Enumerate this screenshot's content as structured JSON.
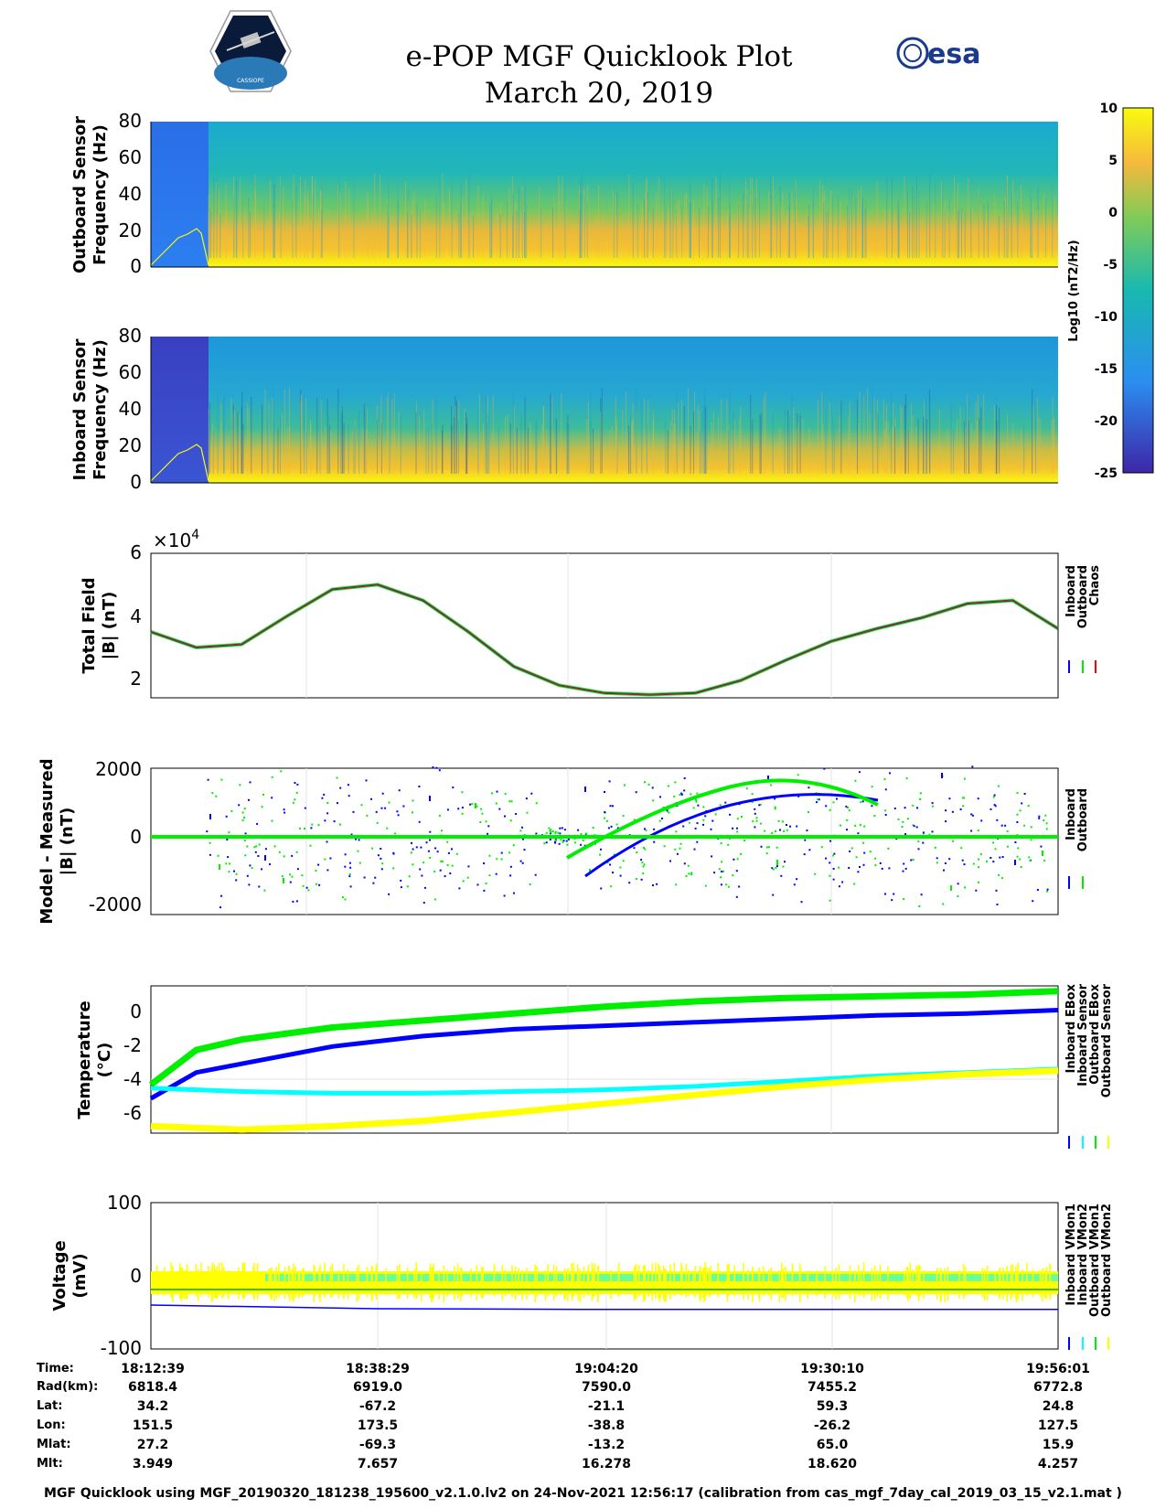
{
  "header": {
    "title_line1": "e-POP MGF Quicklook Plot",
    "title_line2": "March 20, 2019",
    "esa_label": "esa",
    "cassiope_label": "CASSIOPE"
  },
  "colors": {
    "inboard": "#0000ff",
    "outboard": "#00ee00",
    "chaos": "#ff0000",
    "inboard_sensor_temp": "#00ffff",
    "outboard_sensor_temp": "#ffff00",
    "brown_model": "#8b3a1a"
  },
  "chart_data": [
    {
      "type": "heatmap",
      "id": "outboard-spectrogram",
      "ylabel": "Outboard Sensor Frequency (Hz)",
      "ylabel_line1": "Outboard Sensor",
      "ylabel_line2": "Frequency (Hz)",
      "yticks": [
        "80",
        "60",
        "40",
        "20",
        "0"
      ],
      "ylim": [
        0,
        80
      ]
    },
    {
      "type": "heatmap",
      "id": "inboard-spectrogram",
      "ylabel": "Inboard Sensor Frequency (Hz)",
      "ylabel_line1": "Inboard Sensor",
      "ylabel_line2": "Frequency (Hz)",
      "yticks": [
        "80",
        "60",
        "40",
        "20",
        "0"
      ],
      "ylim": [
        0,
        80
      ]
    },
    {
      "type": "colorbar",
      "id": "psd-colorbar",
      "label": "Log10 (nT2/Hz)",
      "ticks": [
        "10",
        "5",
        "0",
        "-5",
        "-10",
        "-15",
        "-20",
        "-25"
      ],
      "range": [
        -25,
        10
      ]
    },
    {
      "type": "line",
      "id": "total-field",
      "ylabel_line1": "Total Field",
      "ylabel_line2": "|B| (nT)",
      "yticks": [
        "6",
        "4",
        "2"
      ],
      "ylim": [
        1.4,
        6
      ],
      "exponent": "×10",
      "exponent_power": "4",
      "legend": [
        "Inboard",
        "Outboard",
        "Chaos"
      ],
      "series": [
        {
          "name": "Chaos",
          "x": [
            0,
            0.05,
            0.1,
            0.15,
            0.2,
            0.25,
            0.3,
            0.35,
            0.4,
            0.45,
            0.5,
            0.55,
            0.6,
            0.65,
            0.7,
            0.75,
            0.8,
            0.85,
            0.9,
            0.95,
            1.0
          ],
          "values": [
            3.5,
            3.0,
            3.1,
            4.0,
            4.85,
            5.0,
            4.5,
            3.5,
            2.4,
            1.8,
            1.55,
            1.5,
            1.55,
            1.95,
            2.6,
            3.2,
            3.6,
            3.95,
            4.4,
            4.5,
            3.6
          ]
        }
      ]
    },
    {
      "type": "scatter",
      "id": "model-minus-measured",
      "ylabel_line1": "Model - Measured",
      "ylabel_line2": "|B| (nT)",
      "yticks": [
        "2000",
        "0",
        "-2000"
      ],
      "ylim": [
        -2200,
        2200
      ],
      "legend": [
        "Inboard",
        "Outboard"
      ]
    },
    {
      "type": "scatter",
      "id": "temperature",
      "ylabel_line1": "Temperature",
      "ylabel_line2": "(°C)",
      "yticks": [
        "0",
        "-2",
        "-4",
        "-6"
      ],
      "ylim": [
        -7,
        1.5
      ],
      "legend": [
        "Inboard EBox",
        "Inboard Sensor",
        "Outboard EBox",
        "Outboard Sensor"
      ],
      "series": [
        {
          "name": "Inboard EBox",
          "x": [
            0,
            0.05,
            0.1,
            0.2,
            0.3,
            0.4,
            0.5,
            0.6,
            0.7,
            0.8,
            0.9,
            1.0
          ],
          "values": [
            -5.0,
            -3.5,
            -3.0,
            -2.0,
            -1.4,
            -1.0,
            -0.8,
            -0.6,
            -0.4,
            -0.2,
            -0.1,
            0.1
          ]
        },
        {
          "name": "Inboard Sensor",
          "x": [
            0,
            0.05,
            0.1,
            0.2,
            0.3,
            0.4,
            0.5,
            0.6,
            0.7,
            0.8,
            0.9,
            1.0
          ],
          "values": [
            -4.4,
            -4.5,
            -4.6,
            -4.7,
            -4.7,
            -4.6,
            -4.5,
            -4.3,
            -4.0,
            -3.7,
            -3.5,
            -3.3
          ]
        },
        {
          "name": "Outboard EBox",
          "x": [
            0,
            0.05,
            0.1,
            0.2,
            0.3,
            0.4,
            0.5,
            0.6,
            0.7,
            0.8,
            0.9,
            1.0
          ],
          "values": [
            -4.2,
            -2.2,
            -1.6,
            -0.9,
            -0.5,
            -0.1,
            0.3,
            0.6,
            0.8,
            0.9,
            1.0,
            1.2
          ]
        },
        {
          "name": "Outboard Sensor",
          "x": [
            0,
            0.05,
            0.1,
            0.2,
            0.3,
            0.4,
            0.5,
            0.6,
            0.7,
            0.8,
            0.9,
            1.0
          ],
          "values": [
            -6.6,
            -6.7,
            -6.8,
            -6.6,
            -6.3,
            -5.8,
            -5.3,
            -4.8,
            -4.3,
            -3.9,
            -3.6,
            -3.4
          ]
        }
      ]
    },
    {
      "type": "scatter",
      "id": "voltage",
      "ylabel_line1": "Voltage",
      "ylabel_line2": "(mV)",
      "yticks": [
        "100",
        "0",
        "-100"
      ],
      "ylim": [
        -100,
        100
      ],
      "legend": [
        "Inboard VMon1",
        "Inboard VMon2",
        "Outboard VMon1",
        "Outboard VMon2"
      ],
      "series": [
        {
          "name": "Inboard VMon1",
          "values": [
            -40,
            -45,
            -46,
            -46,
            -46
          ]
        },
        {
          "name": "Inboard VMon2",
          "values": [
            0,
            0,
            0,
            0,
            0
          ]
        },
        {
          "name": "Outboard VMon1",
          "values": [
            -15,
            -15,
            -15,
            -15,
            -15
          ]
        },
        {
          "name": "Outboard VMon2",
          "values": [
            -5,
            -5,
            -5,
            -5,
            -5
          ]
        }
      ]
    }
  ],
  "ephemeris": {
    "labels": [
      "Time:",
      "Rad(km):",
      "Lat:",
      "Lon:",
      "Mlat:",
      "Mlt:"
    ],
    "columns": [
      [
        "18:12:39",
        "6818.4",
        "34.2",
        "151.5",
        "27.2",
        "3.949"
      ],
      [
        "18:38:29",
        "6919.0",
        "-67.2",
        "173.5",
        "-69.3",
        "7.657"
      ],
      [
        "19:04:20",
        "7590.0",
        "-21.1",
        "-38.8",
        "-13.2",
        "16.278"
      ],
      [
        "19:30:10",
        "7455.2",
        "59.3",
        "-26.2",
        "65.0",
        "18.620"
      ],
      [
        "19:56:01",
        "6772.8",
        "24.8",
        "127.5",
        "15.9",
        "4.257"
      ]
    ]
  },
  "footer": "MGF Quicklook using MGF_20190320_181238_195600_v2.1.0.lv2 on 24-Nov-2021 12:56:17 (calibration from cas_mgf_7day_cal_2019_03_15_v2.1.mat )"
}
